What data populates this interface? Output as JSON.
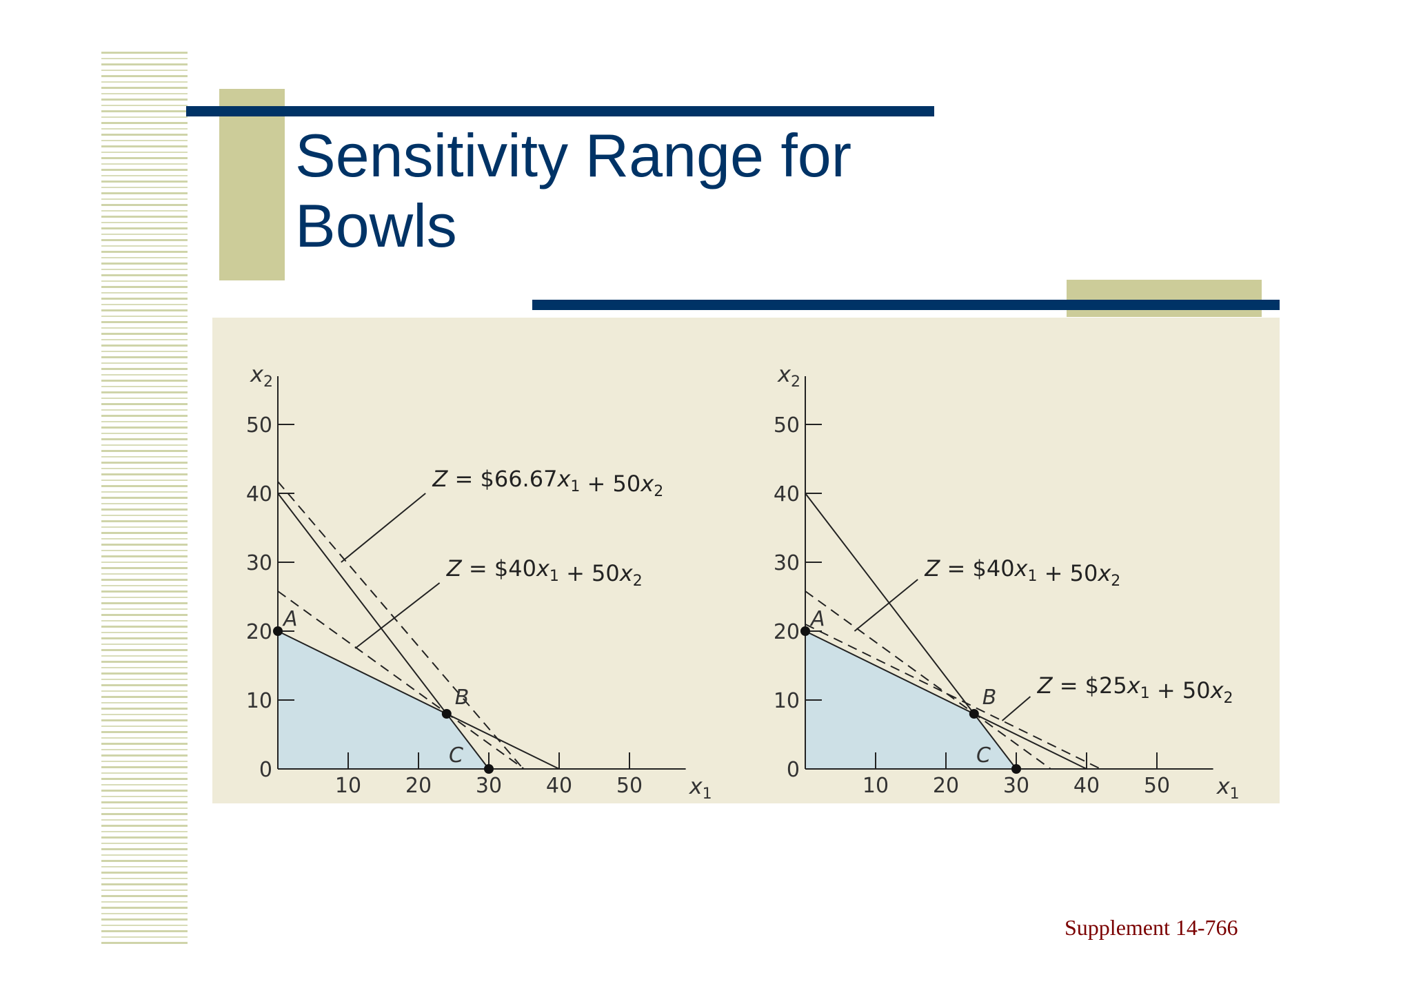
{
  "slide": {
    "title_line1": "Sensitivity Range for",
    "title_line2": "Bowls",
    "footer": "Supplement 14-766"
  },
  "colors": {
    "title": "#003366",
    "bar": "#003366",
    "accent_block": "#cccc99",
    "panel_bg": "#efebd8",
    "feasible_region": "#cde0e6",
    "footer": "#7a0000"
  },
  "chart_data": [
    {
      "type": "line",
      "xlabel": "x1",
      "ylabel": "x2",
      "xlim": [
        0,
        60
      ],
      "ylim": [
        0,
        57
      ],
      "xticks": [
        10,
        20,
        30,
        40,
        50
      ],
      "yticks": [
        0,
        10,
        20,
        30,
        40,
        50
      ],
      "feasible_region": [
        [
          0,
          0
        ],
        [
          0,
          20
        ],
        [
          24,
          8
        ],
        [
          30,
          0
        ]
      ],
      "constraints": [
        {
          "style": "solid",
          "points": [
            [
              0,
              20
            ],
            [
              40,
              0
            ]
          ]
        },
        {
          "style": "solid",
          "points": [
            [
              0,
              40
            ],
            [
              30,
              0
            ]
          ]
        }
      ],
      "objective_lines": [
        {
          "style": "dashed",
          "points": [
            [
              0,
              41.7
            ],
            [
              34.9,
              0
            ]
          ]
        },
        {
          "style": "dashed",
          "points": [
            [
              0,
              25.8
            ],
            [
              35,
              0
            ]
          ]
        }
      ],
      "points": [
        {
          "label": "A",
          "x": 0,
          "y": 20
        },
        {
          "label": "B",
          "x": 24,
          "y": 8
        },
        {
          "label": "C",
          "x": 30,
          "y": 0
        }
      ],
      "annotations": [
        {
          "text": "Z = $66.67x1 + 50x2",
          "x": 22,
          "y": 41,
          "pointer": [
            [
              21,
              40
            ],
            [
              9,
              30
            ]
          ]
        },
        {
          "text": "Z = $40x1 + 50x2",
          "x": 24,
          "y": 28,
          "pointer": [
            [
              23,
              27
            ],
            [
              11,
              17.5
            ]
          ]
        }
      ]
    },
    {
      "type": "line",
      "xlabel": "x1",
      "ylabel": "x2",
      "xlim": [
        0,
        60
      ],
      "ylim": [
        0,
        57
      ],
      "xticks": [
        10,
        20,
        30,
        40,
        50
      ],
      "yticks": [
        0,
        10,
        20,
        30,
        40,
        50
      ],
      "feasible_region": [
        [
          0,
          0
        ],
        [
          0,
          20
        ],
        [
          24,
          8
        ],
        [
          30,
          0
        ]
      ],
      "constraints": [
        {
          "style": "solid",
          "points": [
            [
              0,
              20
            ],
            [
              40,
              0
            ]
          ]
        },
        {
          "style": "solid",
          "points": [
            [
              0,
              40
            ],
            [
              30,
              0
            ]
          ]
        }
      ],
      "objective_lines": [
        {
          "style": "dashed",
          "points": [
            [
              0,
              25.8
            ],
            [
              34.9,
              0
            ]
          ]
        },
        {
          "style": "dashed",
          "points": [
            [
              0,
              21
            ],
            [
              42,
              0
            ]
          ]
        }
      ],
      "points": [
        {
          "label": "A",
          "x": 0,
          "y": 20
        },
        {
          "label": "B",
          "x": 24,
          "y": 8
        },
        {
          "label": "C",
          "x": 30,
          "y": 0
        }
      ],
      "annotations": [
        {
          "text": "Z = $40x1 + 50x2",
          "x": 17,
          "y": 28,
          "pointer": [
            [
              16,
              27.5
            ],
            [
              7,
              20
            ]
          ]
        },
        {
          "text": "Z = $25x1 + 50x2",
          "x": 33,
          "y": 11,
          "pointer": [
            [
              32,
              10.5
            ],
            [
              28,
              7
            ]
          ]
        }
      ]
    }
  ]
}
